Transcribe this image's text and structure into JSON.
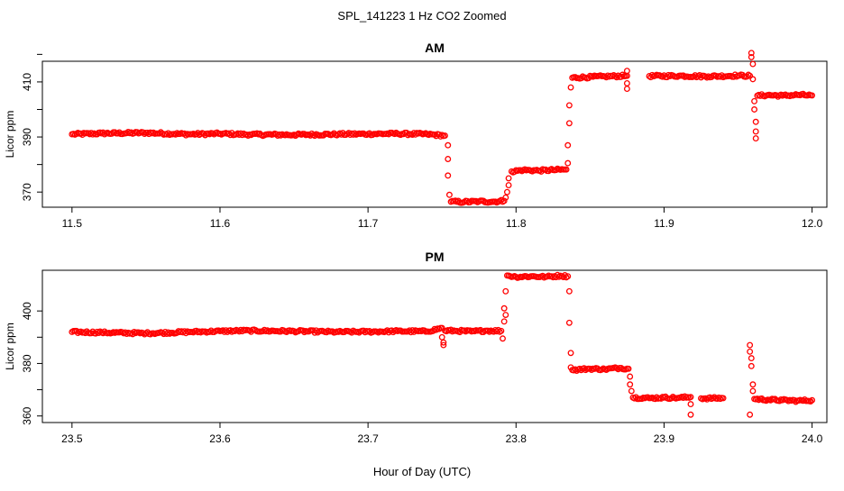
{
  "figure": {
    "title": "SPL_141223  1 Hz CO2 Zoomed",
    "xlabel": "Hour of Day (UTC)"
  },
  "chart_data": [
    {
      "type": "scatter",
      "title": "AM",
      "xlabel": "",
      "ylabel": "Licor ppm",
      "xlim": [
        11.48,
        12.01
      ],
      "ylim": [
        364.5,
        417.5
      ],
      "xticks": [
        "11.5",
        "11.6",
        "11.7",
        "11.8",
        "11.9",
        "12.0"
      ],
      "yticks": [
        "370",
        "390",
        "410"
      ],
      "extra_yticks": [
        420
      ],
      "grid": false,
      "marker": "open-circle",
      "color": "#ff0000",
      "series": [
        {
          "points": [
            [
              11.5,
              391.0
            ],
            [
              11.52,
              391.3
            ],
            [
              11.55,
              391.5
            ],
            [
              11.58,
              391.0
            ],
            [
              11.6,
              391.2
            ],
            [
              11.62,
              390.9
            ],
            [
              11.65,
              390.8
            ],
            [
              11.68,
              391.0
            ],
            [
              11.7,
              391.1
            ],
            [
              11.72,
              391.2
            ],
            [
              11.74,
              391.0
            ],
            [
              11.752,
              390.5
            ],
            [
              11.754,
              387.0
            ],
            [
              11.754,
              382.0
            ],
            [
              11.754,
              376.0
            ],
            [
              11.755,
              369.0
            ],
            [
              11.756,
              366.5
            ],
            [
              11.765,
              366.4
            ],
            [
              11.775,
              366.6
            ],
            [
              11.785,
              366.5
            ],
            [
              11.792,
              366.8
            ],
            [
              11.793,
              368.0
            ],
            [
              11.794,
              370.0
            ],
            [
              11.795,
              372.5
            ],
            [
              11.795,
              375.0
            ],
            [
              11.797,
              377.5
            ],
            [
              11.805,
              378.0
            ],
            [
              11.815,
              377.8
            ],
            [
              11.825,
              378.0
            ],
            [
              11.834,
              378.2
            ],
            [
              11.835,
              380.5
            ],
            [
              11.835,
              387.0
            ],
            [
              11.836,
              395.0
            ],
            [
              11.836,
              401.5
            ],
            [
              11.837,
              408.0
            ],
            [
              11.838,
              411.5
            ],
            [
              11.86,
              412.0
            ],
            [
              11.875,
              412.2
            ],
            [
              11.875,
              414.0
            ],
            [
              11.875,
              409.5
            ],
            [
              11.875,
              407.5
            ],
            [
              11.89,
              412.1
            ],
            [
              11.91,
              412.2
            ],
            [
              11.93,
              412.0
            ],
            [
              11.95,
              412.3
            ],
            [
              11.958,
              412.2
            ],
            [
              11.959,
              420.5
            ],
            [
              11.959,
              419.0
            ],
            [
              11.96,
              416.5
            ],
            [
              11.96,
              411.0
            ],
            [
              11.961,
              403.0
            ],
            [
              11.961,
              400.0
            ],
            [
              11.962,
              395.5
            ],
            [
              11.962,
              392.0
            ],
            [
              11.962,
              389.5
            ],
            [
              11.963,
              405.0
            ],
            [
              11.97,
              405.2
            ],
            [
              11.98,
              405.0
            ],
            [
              11.99,
              405.3
            ],
            [
              12.0,
              405.1
            ]
          ]
        }
      ]
    },
    {
      "type": "scatter",
      "title": "PM",
      "xlabel": "",
      "ylabel": "Licor ppm",
      "xlim": [
        23.48,
        24.01
      ],
      "ylim": [
        357.5,
        415.5
      ],
      "xticks": [
        "23.5",
        "23.6",
        "23.7",
        "23.8",
        "23.9",
        "24.0"
      ],
      "yticks": [
        "360",
        "380",
        "400"
      ],
      "grid": false,
      "marker": "open-circle",
      "color": "#ff0000",
      "series": [
        {
          "points": [
            [
              23.5,
              392.0
            ],
            [
              23.52,
              391.8
            ],
            [
              23.55,
              391.5
            ],
            [
              23.58,
              392.0
            ],
            [
              23.6,
              392.3
            ],
            [
              23.62,
              392.5
            ],
            [
              23.65,
              392.3
            ],
            [
              23.68,
              392.0
            ],
            [
              23.7,
              392.1
            ],
            [
              23.72,
              392.3
            ],
            [
              23.74,
              392.2
            ],
            [
              23.75,
              393.5
            ],
            [
              23.75,
              390.0
            ],
            [
              23.751,
              388.0
            ],
            [
              23.751,
              387.0
            ],
            [
              23.752,
              392.5
            ],
            [
              23.76,
              392.4
            ],
            [
              23.77,
              392.2
            ],
            [
              23.78,
              392.5
            ],
            [
              23.79,
              392.4
            ],
            [
              23.791,
              389.5
            ],
            [
              23.792,
              396.0
            ],
            [
              23.792,
              401.0
            ],
            [
              23.793,
              398.5
            ],
            [
              23.793,
              407.5
            ],
            [
              23.794,
              413.5
            ],
            [
              23.8,
              413.0
            ],
            [
              23.81,
              413.2
            ],
            [
              23.82,
              413.0
            ],
            [
              23.83,
              413.4
            ],
            [
              23.835,
              413.2
            ],
            [
              23.836,
              407.5
            ],
            [
              23.836,
              395.5
            ],
            [
              23.837,
              384.0
            ],
            [
              23.837,
              378.5
            ],
            [
              23.838,
              377.5
            ],
            [
              23.85,
              378.0
            ],
            [
              23.86,
              377.8
            ],
            [
              23.87,
              378.3
            ],
            [
              23.876,
              378.0
            ],
            [
              23.877,
              375.0
            ],
            [
              23.877,
              372.0
            ],
            [
              23.878,
              369.5
            ],
            [
              23.879,
              367.0
            ],
            [
              23.89,
              366.8
            ],
            [
              23.9,
              367.0
            ],
            [
              23.91,
              366.9
            ],
            [
              23.918,
              367.2
            ],
            [
              23.918,
              364.5
            ],
            [
              23.918,
              360.5
            ],
            [
              23.925,
              366.7
            ],
            [
              23.94,
              366.8
            ],
            [
              23.958,
              387.0
            ],
            [
              23.958,
              384.5
            ],
            [
              23.959,
              382.0
            ],
            [
              23.959,
              379.0
            ],
            [
              23.96,
              372.0
            ],
            [
              23.96,
              369.5
            ],
            [
              23.958,
              360.5
            ],
            [
              23.961,
              366.5
            ],
            [
              23.97,
              366.2
            ],
            [
              23.98,
              366.0
            ],
            [
              23.99,
              365.8
            ],
            [
              24.0,
              366.0
            ]
          ]
        }
      ]
    }
  ]
}
